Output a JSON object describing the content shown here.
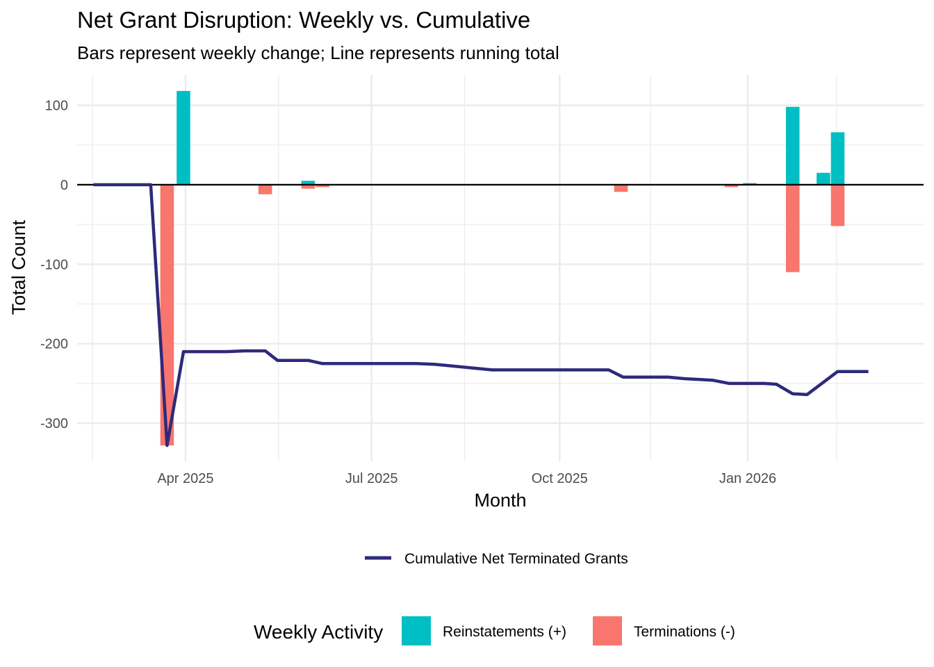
{
  "chart_data": {
    "type": "bar",
    "title": "Net Grant Disruption: Weekly vs. Cumulative",
    "subtitle": "Bars represent weekly change; Line represents running total",
    "xlabel": "Month",
    "ylabel": "Total Count",
    "ylim": [
      -348,
      138
    ],
    "xlim": [
      "2025-02-07",
      "2026-03-28"
    ],
    "x_ticks": [
      {
        "date": "2025-04-01",
        "label": "Apr 2025"
      },
      {
        "date": "2025-07-01",
        "label": "Jul 2025"
      },
      {
        "date": "2025-10-01",
        "label": "Oct 2025"
      },
      {
        "date": "2026-01-01",
        "label": "Jan 2026"
      }
    ],
    "y_ticks": [
      {
        "value": 100,
        "label": "100"
      },
      {
        "value": 0,
        "label": "0"
      },
      {
        "value": -100,
        "label": "-100"
      },
      {
        "value": -200,
        "label": "-200"
      },
      {
        "value": -300,
        "label": "-300"
      }
    ],
    "grid": true,
    "legend_position": "bottom",
    "colors": {
      "reinstatements": "#00BFC4",
      "terminations": "#F8766D",
      "cumulative": "#2E2A7A",
      "zero_line": "#000000",
      "grid": "#EBEBEB"
    },
    "bar_series": [
      {
        "name": "Reinstatements (+)",
        "key": "reinstatements",
        "points": [
          {
            "x": "2025-03-31",
            "y": 118
          },
          {
            "x": "2025-05-31",
            "y": 5
          },
          {
            "x": "2026-01-02",
            "y": 2
          },
          {
            "x": "2026-01-23",
            "y": 98
          },
          {
            "x": "2026-02-07",
            "y": 15
          },
          {
            "x": "2026-02-14",
            "y": 66
          }
        ]
      },
      {
        "name": "Terminations (-)",
        "key": "terminations",
        "points": [
          {
            "x": "2025-03-23",
            "y": -328
          },
          {
            "x": "2025-05-10",
            "y": -12
          },
          {
            "x": "2025-05-31",
            "y": -5
          },
          {
            "x": "2025-06-07",
            "y": -3
          },
          {
            "x": "2025-08-08",
            "y": -1
          },
          {
            "x": "2025-08-15",
            "y": -1
          },
          {
            "x": "2025-08-22",
            "y": -1
          },
          {
            "x": "2025-08-29",
            "y": -1
          },
          {
            "x": "2025-10-31",
            "y": -9
          },
          {
            "x": "2025-12-01",
            "y": -1
          },
          {
            "x": "2025-12-24",
            "y": -3
          },
          {
            "x": "2026-01-09",
            "y": -1
          },
          {
            "x": "2026-01-23",
            "y": -110
          },
          {
            "x": "2026-02-14",
            "y": -52
          }
        ]
      }
    ],
    "line_series": {
      "name": "Cumulative Net Terminated Grants",
      "key": "cumulative",
      "points": [
        {
          "x": "2025-02-15",
          "y": 0
        },
        {
          "x": "2025-03-15",
          "y": 0
        },
        {
          "x": "2025-03-23",
          "y": -328
        },
        {
          "x": "2025-03-31",
          "y": -210
        },
        {
          "x": "2025-04-21",
          "y": -210
        },
        {
          "x": "2025-04-30",
          "y": -209
        },
        {
          "x": "2025-05-10",
          "y": -209
        },
        {
          "x": "2025-05-16",
          "y": -221
        },
        {
          "x": "2025-05-31",
          "y": -221
        },
        {
          "x": "2025-06-07",
          "y": -225
        },
        {
          "x": "2025-07-23",
          "y": -225
        },
        {
          "x": "2025-08-01",
          "y": -226
        },
        {
          "x": "2025-08-29",
          "y": -233
        },
        {
          "x": "2025-10-25",
          "y": -233
        },
        {
          "x": "2025-11-01",
          "y": -242
        },
        {
          "x": "2025-11-23",
          "y": -242
        },
        {
          "x": "2025-12-01",
          "y": -244
        },
        {
          "x": "2025-12-15",
          "y": -246
        },
        {
          "x": "2025-12-23",
          "y": -250
        },
        {
          "x": "2026-01-09",
          "y": -250
        },
        {
          "x": "2026-01-15",
          "y": -251
        },
        {
          "x": "2026-01-23",
          "y": -263
        },
        {
          "x": "2026-01-30",
          "y": -264
        },
        {
          "x": "2026-02-14",
          "y": -235
        },
        {
          "x": "2026-02-21",
          "y": -235
        },
        {
          "x": "2026-03-01",
          "y": -235
        }
      ]
    },
    "legends": {
      "line": {
        "entries": [
          "Cumulative Net Terminated Grants"
        ]
      },
      "bars": {
        "title": "Weekly Activity",
        "entries": [
          "Reinstatements (+)",
          "Terminations (-)"
        ]
      }
    }
  }
}
